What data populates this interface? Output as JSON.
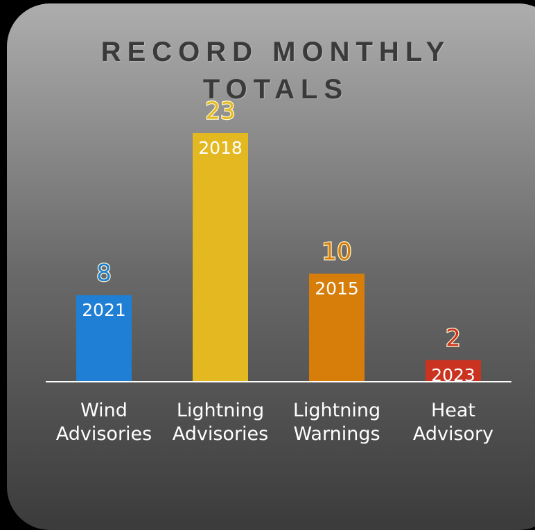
{
  "chart_data": {
    "type": "bar",
    "title": "RECORD MONTHLY TOTALS",
    "categories": [
      "Wind Advisories",
      "Lightning Advisories",
      "Lightning Warnings",
      "Heat Advisory"
    ],
    "values": [
      8,
      23,
      10,
      2
    ],
    "bar_labels": [
      "2021",
      "2018",
      "2015",
      "2023"
    ],
    "colors": [
      "#1f7fd4",
      "#e4b820",
      "#d67d0a",
      "#c9331f"
    ],
    "ylim": [
      0,
      23
    ]
  }
}
